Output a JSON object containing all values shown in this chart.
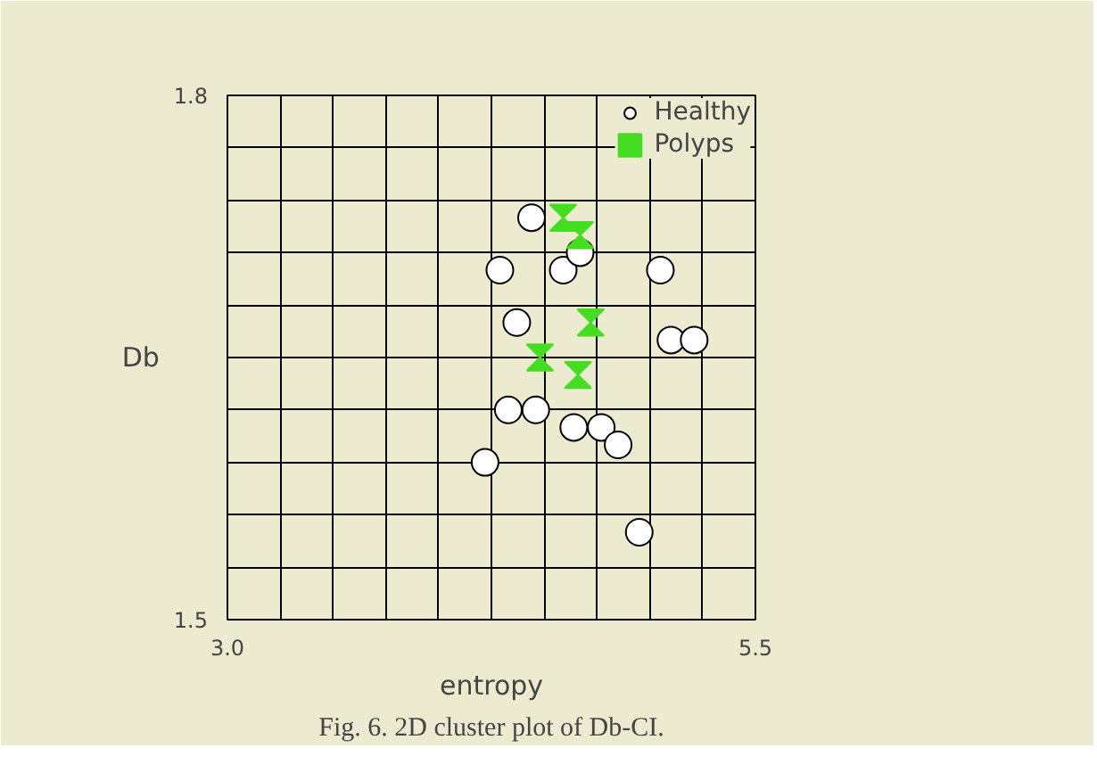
{
  "chart_data": {
    "type": "scatter",
    "xlabel": "entropy",
    "ylabel": "Db",
    "annotations": [
      "Fig. 6. 2D cluster plot of Db-CI."
    ],
    "xlim": [
      3.0,
      5.5
    ],
    "ylim": [
      1.5,
      1.8
    ],
    "xticks": [
      {
        "value": 3.0,
        "label": "3.0"
      },
      {
        "value": 3.25,
        "label": null
      },
      {
        "value": 3.5,
        "label": null
      },
      {
        "value": 3.75,
        "label": null
      },
      {
        "value": 4.0,
        "label": null
      },
      {
        "value": 4.25,
        "label": null
      },
      {
        "value": 4.5,
        "label": null
      },
      {
        "value": 4.75,
        "label": null
      },
      {
        "value": 5.0,
        "label": null
      },
      {
        "value": 5.25,
        "label": null
      },
      {
        "value": 5.5,
        "label": "5.5"
      }
    ],
    "yticks": [
      {
        "value": 1.5,
        "label": "1.5"
      },
      {
        "value": 1.53,
        "label": null
      },
      {
        "value": 1.56,
        "label": null
      },
      {
        "value": 1.59,
        "label": null
      },
      {
        "value": 1.62,
        "label": null
      },
      {
        "value": 1.65,
        "label": null
      },
      {
        "value": 1.68,
        "label": null
      },
      {
        "value": 1.71,
        "label": null
      },
      {
        "value": 1.74,
        "label": null
      },
      {
        "value": 1.77,
        "label": null
      },
      {
        "value": 1.8,
        "label": "1.8"
      }
    ],
    "grid": true,
    "legend": "top right",
    "series": [
      {
        "name": "Healthy",
        "color": "#ffffff",
        "marker": "circle",
        "x": [
          4.44,
          4.29,
          4.59,
          4.67,
          5.05,
          4.37,
          5.1,
          5.21,
          4.33,
          4.46,
          4.64,
          4.77,
          4.85,
          4.22,
          4.95
        ],
        "values": [
          1.73,
          1.7,
          1.7,
          1.71,
          1.7,
          1.67,
          1.66,
          1.66,
          1.62,
          1.62,
          1.61,
          1.61,
          1.6,
          1.59,
          1.55
        ]
      },
      {
        "name": "Polyps",
        "color": "#44dd22",
        "x": [
          4.59,
          4.67,
          4.72,
          4.48,
          4.66
        ],
        "values": [
          1.73,
          1.72,
          1.67,
          1.65,
          1.64
        ]
      }
    ]
  }
}
